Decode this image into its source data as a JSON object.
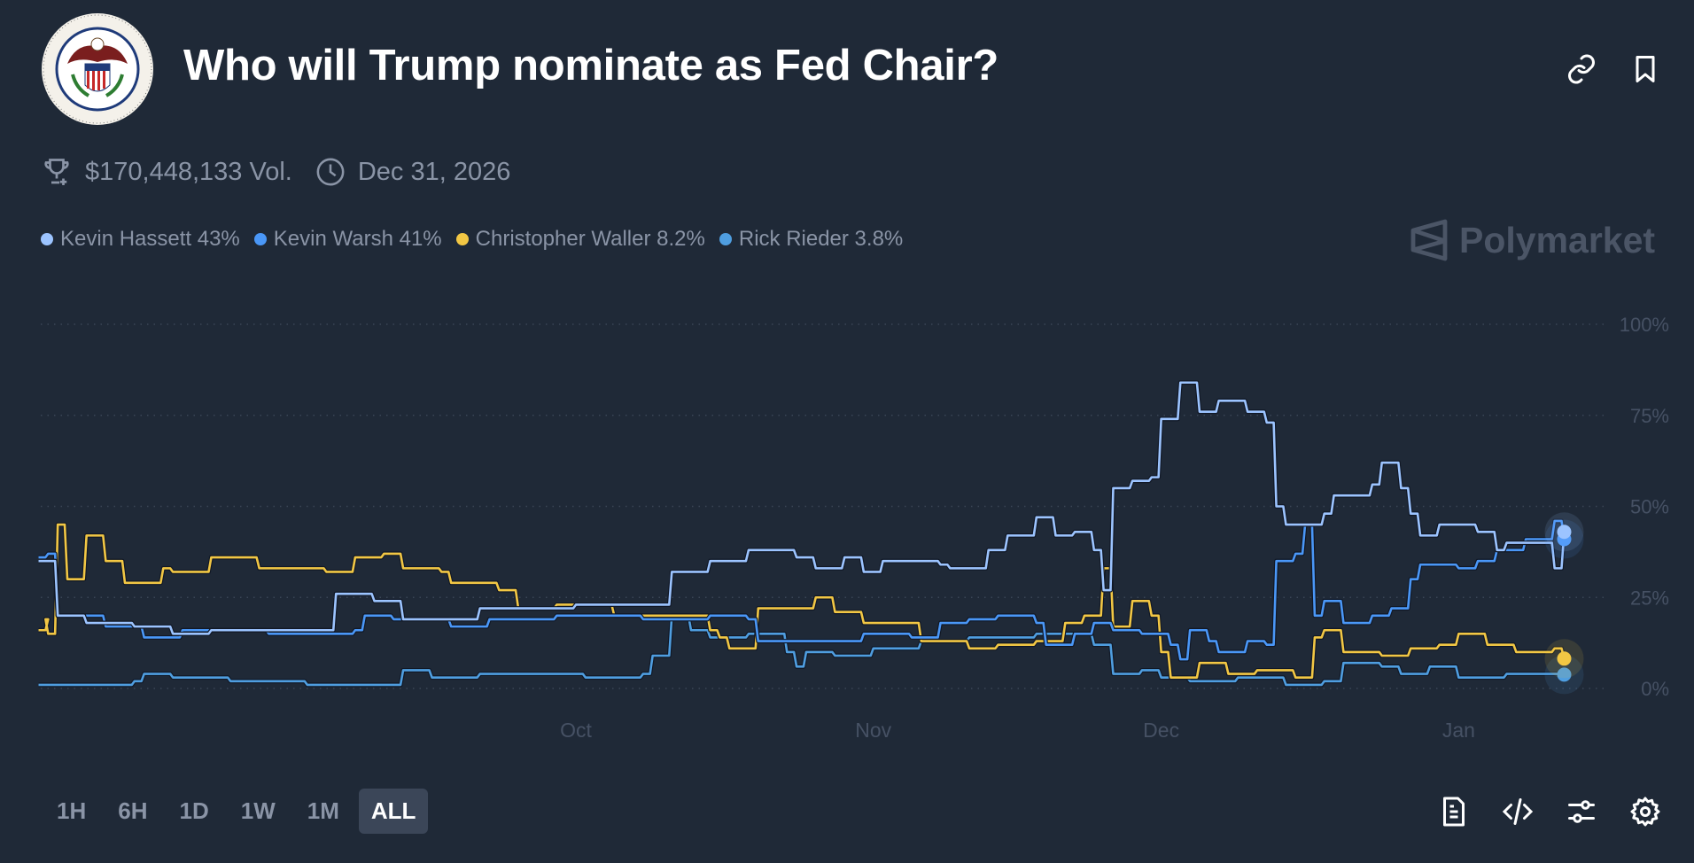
{
  "header": {
    "title": "Who will Trump nominate as Fed Chair?",
    "logo_text": "Board of Governors of the Federal Reserve System",
    "icons": [
      "link-icon",
      "bookmark-icon"
    ]
  },
  "stats": {
    "volume": "$170,448,133 Vol.",
    "end_date": "Dec 31, 2026",
    "icons": [
      "trophy-icon",
      "clock-icon"
    ]
  },
  "brand": "Polymarket",
  "legend": [
    {
      "label": "Kevin Hassett 43%",
      "color": "#9cc4ff"
    },
    {
      "label": "Kevin Warsh 41%",
      "color": "#4a97f7"
    },
    {
      "label": "Christopher Waller 8.2%",
      "color": "#f2c744"
    },
    {
      "label": "Rick Rieder 3.8%",
      "color": "#4f9ee0"
    }
  ],
  "time_ranges": [
    {
      "label": "1H",
      "active": false
    },
    {
      "label": "6H",
      "active": false
    },
    {
      "label": "1D",
      "active": false
    },
    {
      "label": "1W",
      "active": false
    },
    {
      "label": "1M",
      "active": false
    },
    {
      "label": "ALL",
      "active": true
    }
  ],
  "toolbar_icons": [
    "document-icon",
    "code-icon",
    "sliders-icon",
    "gear-icon"
  ],
  "chart_data": {
    "type": "line",
    "xlim": [
      "2025-08-06",
      "2026-01-12"
    ],
    "ylim": [
      0,
      100
    ],
    "y_ticks": [
      "100%",
      "75%",
      "50%",
      "25%",
      "0%"
    ],
    "y_tick_values": [
      100,
      75,
      50,
      25,
      0
    ],
    "x_ticks": [
      "Oct",
      "Nov",
      "Dec",
      "Jan"
    ],
    "x_tick_dates": [
      "2025-10-01",
      "2025-11-01",
      "2025-12-01",
      "2026-01-01"
    ],
    "grid": "horizontal dotted",
    "legend_position": "top-left",
    "series": [
      {
        "name": "Kevin Hassett",
        "color": "#9cc4ff",
        "points": [
          [
            "2025-08-06",
            35
          ],
          [
            "2025-08-08",
            20
          ],
          [
            "2025-08-11",
            18
          ],
          [
            "2025-08-16",
            17
          ],
          [
            "2025-08-20",
            15
          ],
          [
            "2025-08-24",
            16
          ],
          [
            "2025-09-03",
            16
          ],
          [
            "2025-09-05",
            16
          ],
          [
            "2025-09-06",
            26
          ],
          [
            "2025-09-10",
            24
          ],
          [
            "2025-09-12",
            24
          ],
          [
            "2025-09-13",
            19
          ],
          [
            "2025-09-18",
            19
          ],
          [
            "2025-09-21",
            22
          ],
          [
            "2025-10-01",
            23
          ],
          [
            "2025-10-10",
            23
          ],
          [
            "2025-10-11",
            32
          ],
          [
            "2025-10-15",
            35
          ],
          [
            "2025-10-19",
            38
          ],
          [
            "2025-10-24",
            36
          ],
          [
            "2025-10-26",
            33
          ],
          [
            "2025-10-29",
            36
          ],
          [
            "2025-10-31",
            32
          ],
          [
            "2025-11-02",
            35
          ],
          [
            "2025-11-08",
            34
          ],
          [
            "2025-11-09",
            33
          ],
          [
            "2025-11-13",
            38
          ],
          [
            "2025-11-15",
            42
          ],
          [
            "2025-11-18",
            47
          ],
          [
            "2025-11-20",
            42
          ],
          [
            "2025-11-22",
            43
          ],
          [
            "2025-11-24",
            38
          ],
          [
            "2025-11-25",
            27
          ],
          [
            "2025-11-26",
            55
          ],
          [
            "2025-11-28",
            57
          ],
          [
            "2025-11-30",
            58
          ],
          [
            "2025-12-01",
            74
          ],
          [
            "2025-12-03",
            84
          ],
          [
            "2025-12-05",
            76
          ],
          [
            "2025-12-07",
            79
          ],
          [
            "2025-12-10",
            76
          ],
          [
            "2025-12-12",
            73
          ],
          [
            "2025-12-13",
            50
          ],
          [
            "2025-12-14",
            45
          ],
          [
            "2025-12-18",
            48
          ],
          [
            "2025-12-19",
            53
          ],
          [
            "2025-12-23",
            56
          ],
          [
            "2025-12-24",
            62
          ],
          [
            "2025-12-26",
            55
          ],
          [
            "2025-12-27",
            48
          ],
          [
            "2025-12-28",
            42
          ],
          [
            "2025-12-30",
            45
          ],
          [
            "2026-01-03",
            43
          ],
          [
            "2026-01-05",
            38
          ],
          [
            "2026-01-06",
            40
          ],
          [
            "2026-01-08",
            40
          ],
          [
            "2026-01-11",
            33
          ],
          [
            "2026-01-12",
            43
          ]
        ]
      },
      {
        "name": "Kevin Warsh",
        "color": "#4a97f7",
        "points": [
          [
            "2025-08-06",
            36
          ],
          [
            "2025-08-07",
            37
          ],
          [
            "2025-08-08",
            20
          ],
          [
            "2025-08-13",
            17
          ],
          [
            "2025-08-17",
            14
          ],
          [
            "2025-08-21",
            16
          ],
          [
            "2025-08-30",
            15
          ],
          [
            "2025-09-08",
            16
          ],
          [
            "2025-09-09",
            20
          ],
          [
            "2025-09-12",
            19
          ],
          [
            "2025-09-18",
            17
          ],
          [
            "2025-09-22",
            19
          ],
          [
            "2025-09-29",
            20
          ],
          [
            "2025-10-08",
            19
          ],
          [
            "2025-10-15",
            20
          ],
          [
            "2025-10-19",
            19
          ],
          [
            "2025-10-20",
            13
          ],
          [
            "2025-10-27",
            13
          ],
          [
            "2025-10-31",
            15
          ],
          [
            "2025-11-05",
            14
          ],
          [
            "2025-11-08",
            18
          ],
          [
            "2025-11-11",
            19
          ],
          [
            "2025-11-14",
            20
          ],
          [
            "2025-11-18",
            18
          ],
          [
            "2025-11-19",
            12
          ],
          [
            "2025-11-22",
            15
          ],
          [
            "2025-11-24",
            18
          ],
          [
            "2025-11-26",
            16
          ],
          [
            "2025-11-29",
            15
          ],
          [
            "2025-12-02",
            12
          ],
          [
            "2025-12-03",
            8
          ],
          [
            "2025-12-04",
            16
          ],
          [
            "2025-12-06",
            13
          ],
          [
            "2025-12-07",
            10
          ],
          [
            "2025-12-10",
            13
          ],
          [
            "2025-12-12",
            12
          ],
          [
            "2025-12-13",
            35
          ],
          [
            "2025-12-15",
            37
          ],
          [
            "2025-12-16",
            45
          ],
          [
            "2025-12-17",
            20
          ],
          [
            "2025-12-18",
            24
          ],
          [
            "2025-12-20",
            18
          ],
          [
            "2025-12-23",
            20
          ],
          [
            "2025-12-25",
            22
          ],
          [
            "2025-12-27",
            30
          ],
          [
            "2025-12-28",
            34
          ],
          [
            "2026-01-01",
            33
          ],
          [
            "2026-01-03",
            35
          ],
          [
            "2026-01-05",
            38
          ],
          [
            "2026-01-08",
            41
          ],
          [
            "2026-01-11",
            46
          ],
          [
            "2026-01-12",
            41
          ]
        ]
      },
      {
        "name": "Christopher Waller",
        "color": "#f2c744",
        "points": [
          [
            "2025-08-06",
            16
          ],
          [
            "2025-08-07",
            19
          ],
          [
            "2025-08-07",
            15
          ],
          [
            "2025-08-08",
            45
          ],
          [
            "2025-08-09",
            30
          ],
          [
            "2025-08-11",
            42
          ],
          [
            "2025-08-13",
            35
          ],
          [
            "2025-08-15",
            29
          ],
          [
            "2025-08-19",
            33
          ],
          [
            "2025-08-20",
            32
          ],
          [
            "2025-08-24",
            36
          ],
          [
            "2025-08-29",
            33
          ],
          [
            "2025-09-03",
            33
          ],
          [
            "2025-09-05",
            32
          ],
          [
            "2025-09-08",
            36
          ],
          [
            "2025-09-11",
            37
          ],
          [
            "2025-09-13",
            33
          ],
          [
            "2025-09-17",
            32
          ],
          [
            "2025-09-18",
            29
          ],
          [
            "2025-09-23",
            27
          ],
          [
            "2025-09-25",
            22
          ],
          [
            "2025-09-29",
            23
          ],
          [
            "2025-10-05",
            20
          ],
          [
            "2025-10-10",
            20
          ],
          [
            "2025-10-15",
            16
          ],
          [
            "2025-10-16",
            14
          ],
          [
            "2025-10-17",
            11
          ],
          [
            "2025-10-20",
            22
          ],
          [
            "2025-10-26",
            25
          ],
          [
            "2025-10-28",
            21
          ],
          [
            "2025-10-31",
            18
          ],
          [
            "2025-11-06",
            13
          ],
          [
            "2025-11-11",
            11
          ],
          [
            "2025-11-14",
            12
          ],
          [
            "2025-11-18",
            13
          ],
          [
            "2025-11-21",
            18
          ],
          [
            "2025-11-23",
            20
          ],
          [
            "2025-11-25",
            33
          ],
          [
            "2025-11-26",
            17
          ],
          [
            "2025-11-28",
            24
          ],
          [
            "2025-11-30",
            20
          ],
          [
            "2025-12-01",
            10
          ],
          [
            "2025-12-02",
            3
          ],
          [
            "2025-12-05",
            7
          ],
          [
            "2025-12-08",
            4
          ],
          [
            "2025-12-11",
            5
          ],
          [
            "2025-12-15",
            3
          ],
          [
            "2025-12-17",
            14
          ],
          [
            "2025-12-18",
            16
          ],
          [
            "2025-12-20",
            10
          ],
          [
            "2025-12-24",
            9
          ],
          [
            "2025-12-27",
            11
          ],
          [
            "2025-12-30",
            12
          ],
          [
            "2026-01-01",
            15
          ],
          [
            "2026-01-04",
            12
          ],
          [
            "2026-01-07",
            10
          ],
          [
            "2026-01-11",
            11
          ],
          [
            "2026-01-12",
            8.2
          ]
        ]
      },
      {
        "name": "Rick Rieder",
        "color": "#4f9ee0",
        "points": [
          [
            "2025-08-06",
            1
          ],
          [
            "2025-08-11",
            1
          ],
          [
            "2025-08-16",
            2
          ],
          [
            "2025-08-17",
            4
          ],
          [
            "2025-08-20",
            3
          ],
          [
            "2025-08-26",
            2
          ],
          [
            "2025-09-03",
            1
          ],
          [
            "2025-09-10",
            1
          ],
          [
            "2025-09-13",
            5
          ],
          [
            "2025-09-16",
            3
          ],
          [
            "2025-09-21",
            4
          ],
          [
            "2025-10-02",
            3
          ],
          [
            "2025-10-08",
            4
          ],
          [
            "2025-10-09",
            9
          ],
          [
            "2025-10-11",
            20
          ],
          [
            "2025-10-13",
            16
          ],
          [
            "2025-10-15",
            14
          ],
          [
            "2025-10-19",
            15
          ],
          [
            "2025-10-23",
            10
          ],
          [
            "2025-10-24",
            6
          ],
          [
            "2025-10-25",
            10
          ],
          [
            "2025-10-28",
            9
          ],
          [
            "2025-11-01",
            11
          ],
          [
            "2025-11-06",
            13
          ],
          [
            "2025-11-11",
            14
          ],
          [
            "2025-11-18",
            15
          ],
          [
            "2025-11-22",
            15
          ],
          [
            "2025-11-24",
            12
          ],
          [
            "2025-11-26",
            4
          ],
          [
            "2025-11-29",
            5
          ],
          [
            "2025-12-01",
            3
          ],
          [
            "2025-12-04",
            2
          ],
          [
            "2025-12-09",
            3
          ],
          [
            "2025-12-14",
            1
          ],
          [
            "2025-12-18",
            2
          ],
          [
            "2025-12-20",
            7
          ],
          [
            "2025-12-24",
            6
          ],
          [
            "2025-12-26",
            4
          ],
          [
            "2025-12-29",
            6
          ],
          [
            "2026-01-01",
            3
          ],
          [
            "2026-01-06",
            4
          ],
          [
            "2026-01-08",
            4
          ],
          [
            "2026-01-12",
            3.8
          ]
        ]
      }
    ]
  }
}
